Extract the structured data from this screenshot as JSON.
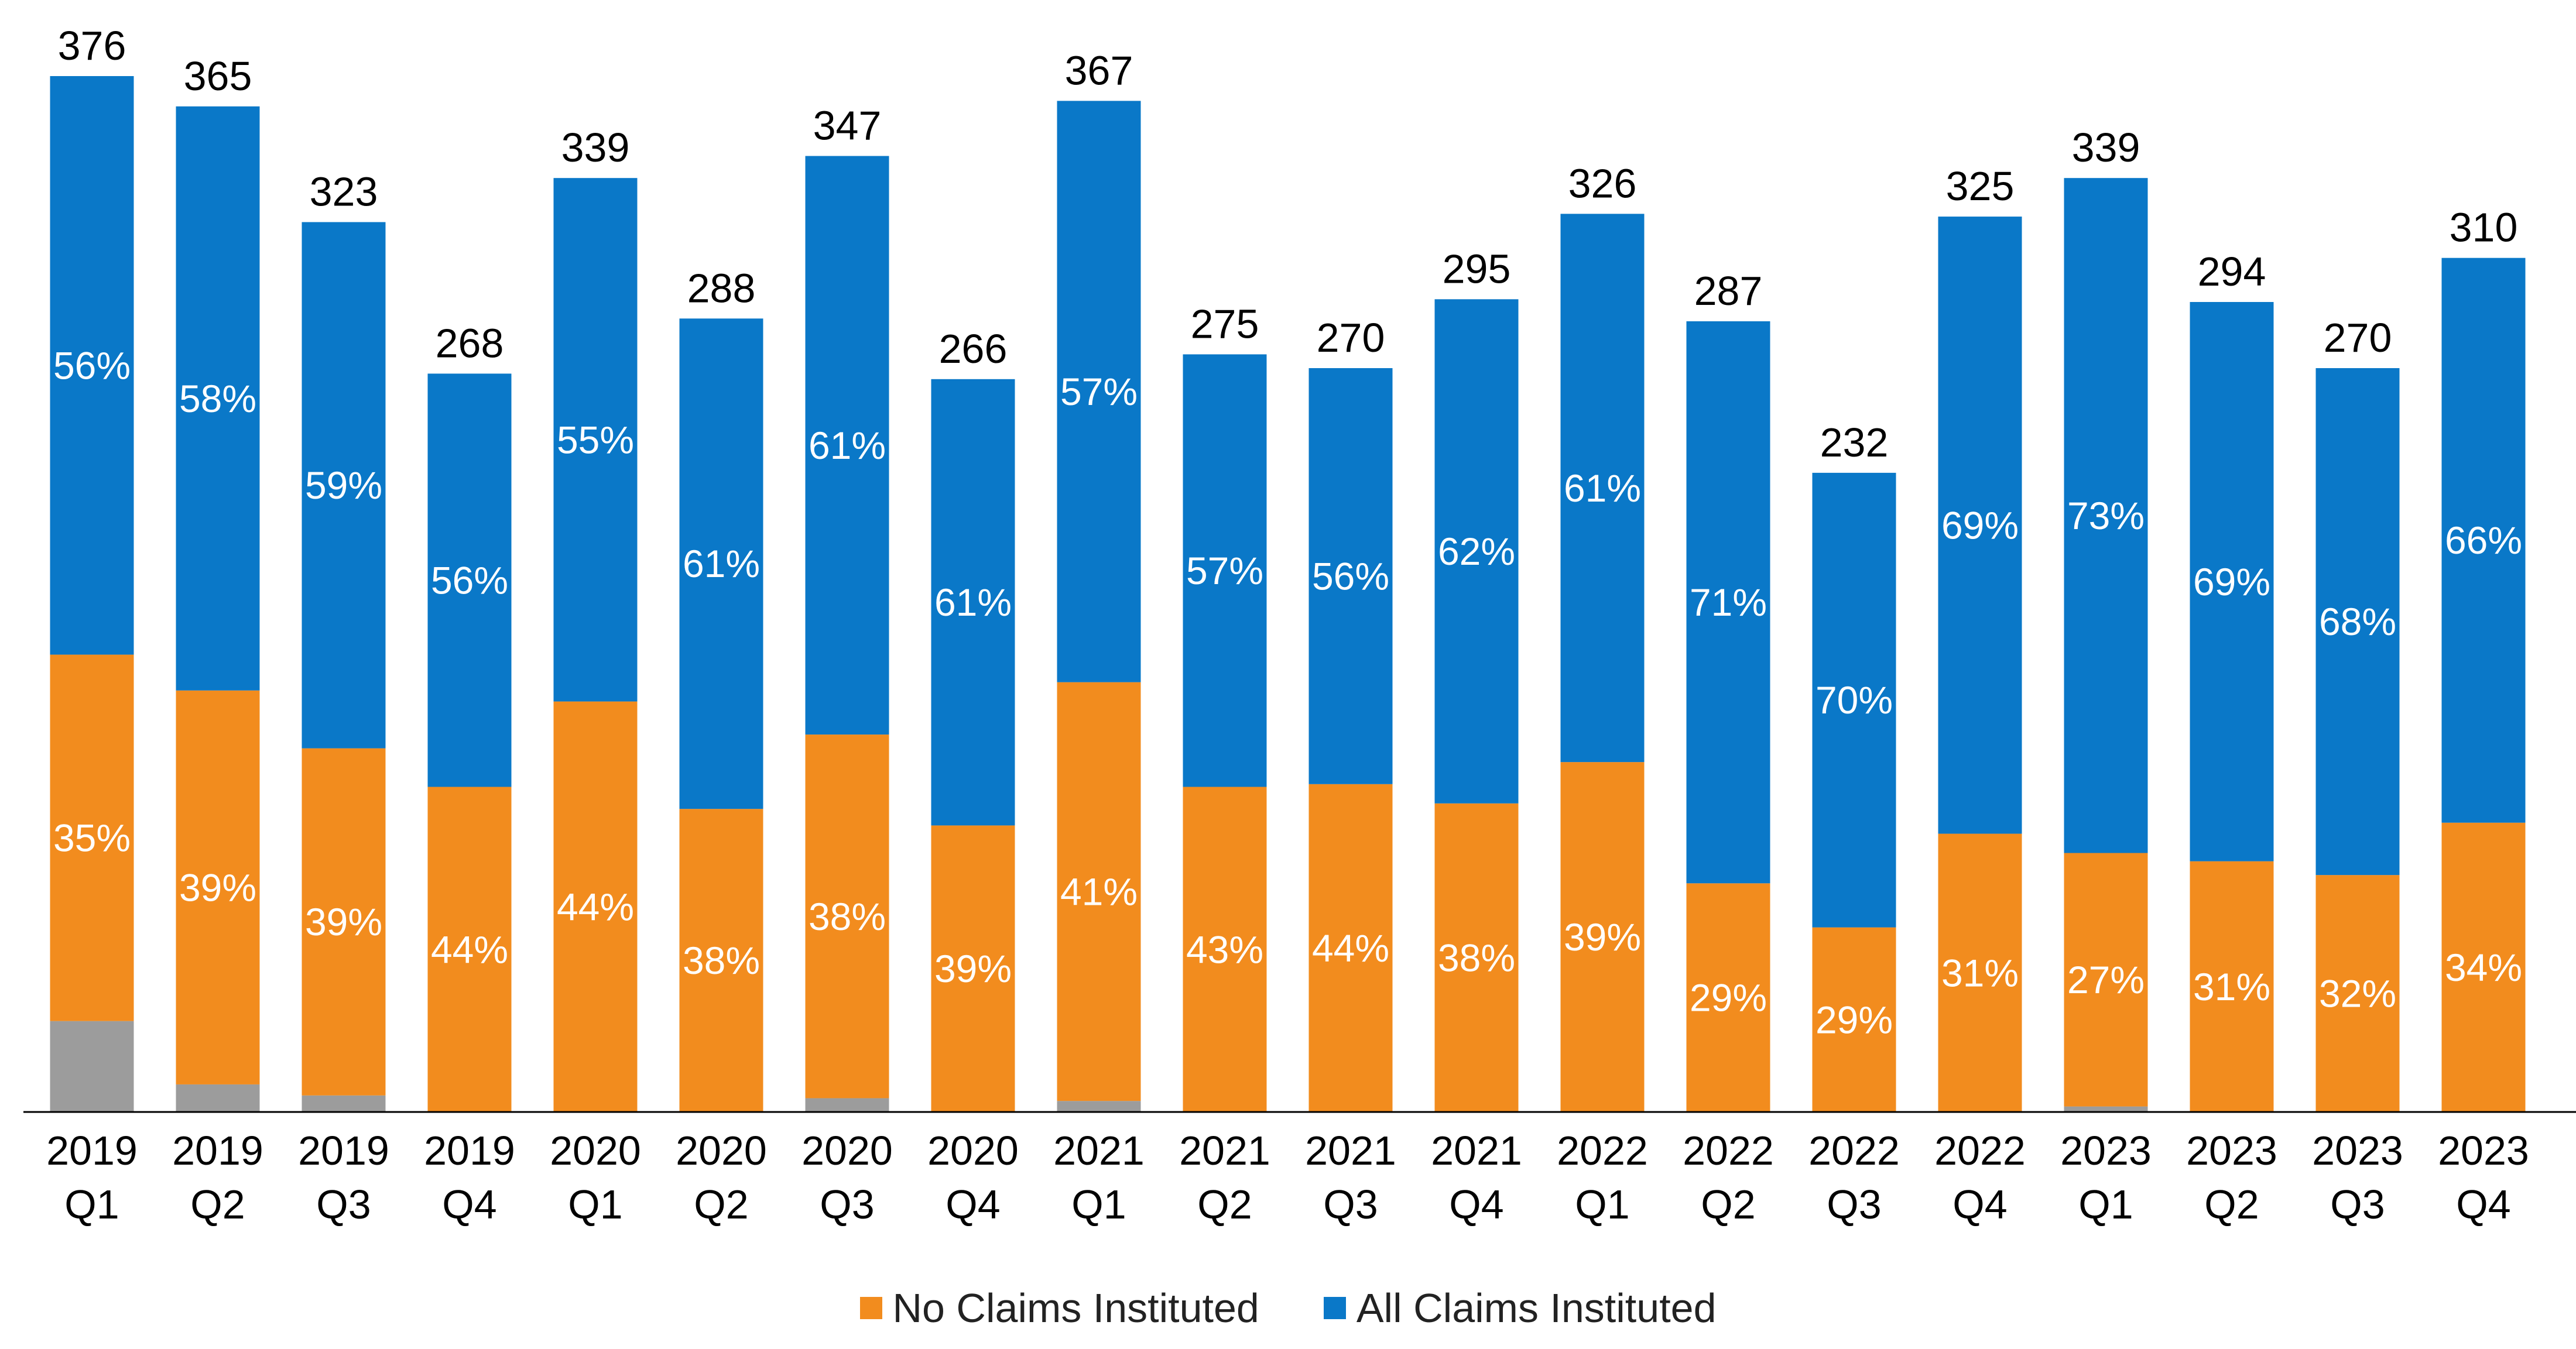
{
  "colors": {
    "no_claims": "#F28C1E",
    "all_claims": "#0A78C8",
    "other": "#9C9C9C",
    "axis": "#000000"
  },
  "legend": [
    {
      "label": "No Claims Instituted",
      "color": "#F28C1E"
    },
    {
      "label": "All Claims Instituted",
      "color": "#0A78C8"
    }
  ],
  "chart_data": {
    "type": "bar",
    "stacked": true,
    "title": "",
    "xlabel": "",
    "ylabel": "",
    "categories": [
      [
        "2019",
        "Q1"
      ],
      [
        "2019",
        "Q2"
      ],
      [
        "2019",
        "Q3"
      ],
      [
        "2019",
        "Q4"
      ],
      [
        "2020",
        "Q1"
      ],
      [
        "2020",
        "Q2"
      ],
      [
        "2020",
        "Q3"
      ],
      [
        "2020",
        "Q4"
      ],
      [
        "2021",
        "Q1"
      ],
      [
        "2021",
        "Q2"
      ],
      [
        "2021",
        "Q3"
      ],
      [
        "2021",
        "Q4"
      ],
      [
        "2022",
        "Q1"
      ],
      [
        "2022",
        "Q2"
      ],
      [
        "2022",
        "Q3"
      ],
      [
        "2022",
        "Q4"
      ],
      [
        "2023",
        "Q1"
      ],
      [
        "2023",
        "Q2"
      ],
      [
        "2023",
        "Q3"
      ],
      [
        "2023",
        "Q4"
      ]
    ],
    "totals": [
      376,
      365,
      323,
      268,
      339,
      288,
      347,
      266,
      367,
      275,
      270,
      295,
      326,
      287,
      232,
      325,
      339,
      294,
      270,
      310
    ],
    "series": [
      {
        "name": "",
        "key": "other",
        "values": [
          33,
          10,
          6,
          0,
          0,
          0,
          5,
          0,
          4,
          0,
          0,
          0,
          0,
          0,
          0,
          0,
          2,
          0,
          0,
          0
        ]
      },
      {
        "name": "No Claims Instituted",
        "key": "no_claims",
        "values": [
          133,
          143,
          126,
          118,
          149,
          110,
          132,
          104,
          152,
          118,
          119,
          112,
          127,
          83,
          67,
          101,
          92,
          91,
          86,
          105
        ],
        "labels": [
          "35%",
          "39%",
          "39%",
          "44%",
          "44%",
          "38%",
          "38%",
          "39%",
          "41%",
          "43%",
          "44%",
          "38%",
          "39%",
          "29%",
          "29%",
          "31%",
          "27%",
          "31%",
          "32%",
          "34%"
        ]
      },
      {
        "name": "All Claims Instituted",
        "key": "all_claims",
        "values": [
          210,
          212,
          191,
          150,
          190,
          178,
          210,
          162,
          211,
          157,
          151,
          183,
          199,
          204,
          165,
          224,
          245,
          203,
          184,
          205
        ],
        "labels": [
          "56%",
          "58%",
          "59%",
          "56%",
          "55%",
          "61%",
          "61%",
          "61%",
          "57%",
          "57%",
          "56%",
          "62%",
          "61%",
          "71%",
          "70%",
          "69%",
          "73%",
          "69%",
          "68%",
          "66%"
        ]
      }
    ],
    "ylim": [
      0,
      376
    ],
    "grid": false,
    "legend_position": "bottom-center"
  }
}
